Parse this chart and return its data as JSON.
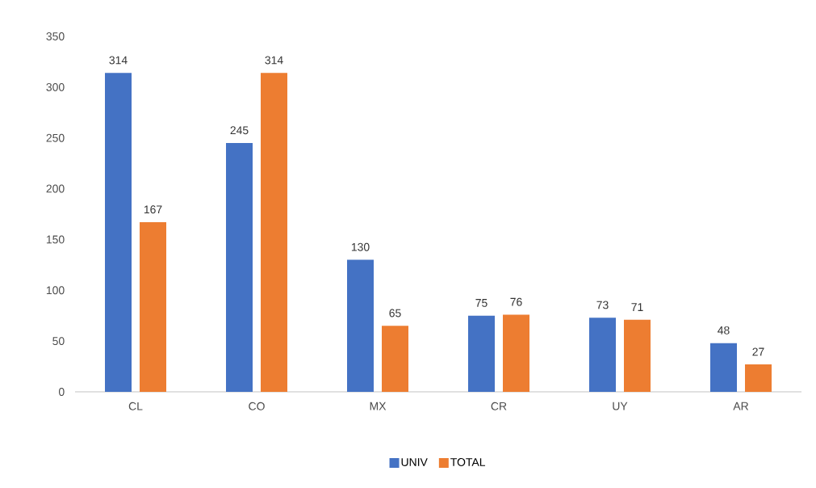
{
  "chart_data": {
    "type": "bar",
    "categories": [
      "CL",
      "CO",
      "MX",
      "CR",
      "UY",
      "AR"
    ],
    "series": [
      {
        "name": "UNIV",
        "color": "#4472c4",
        "values": [
          314,
          245,
          130,
          75,
          73,
          48
        ]
      },
      {
        "name": "TOTAL",
        "color": "#ed7d31",
        "values": [
          167,
          314,
          65,
          76,
          71,
          27
        ]
      }
    ],
    "ylim": [
      0,
      350
    ],
    "yticks": [
      0,
      50,
      100,
      150,
      200,
      250,
      300,
      350
    ],
    "data_labels": true,
    "legend": "bottom"
  }
}
